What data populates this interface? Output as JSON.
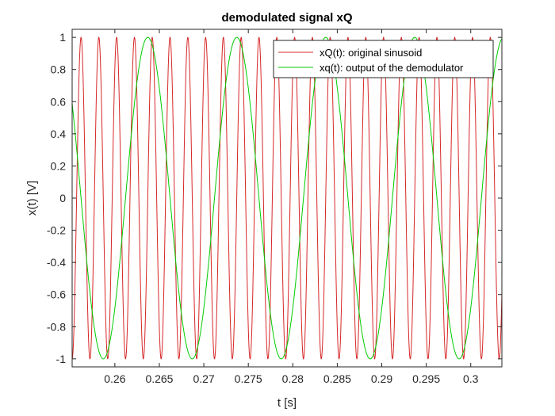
{
  "chart_data": {
    "type": "line",
    "title": "demodulated signal xQ",
    "xlabel": "t [s]",
    "ylabel": "x(t) [V]",
    "xlim": [
      0.2552,
      0.3035
    ],
    "ylim": [
      -1.05,
      1.05
    ],
    "xticks": [
      0.26,
      0.265,
      0.27,
      0.275,
      0.28,
      0.285,
      0.29,
      0.295,
      0.3
    ],
    "xtick_labels": [
      "0.26",
      "0.265",
      "0.27",
      "0.275",
      "0.28",
      "0.285",
      "0.29",
      "0.295",
      "0.3"
    ],
    "yticks": [
      -1,
      -0.8,
      -0.6,
      -0.4,
      -0.2,
      0,
      0.2,
      0.4,
      0.6,
      0.8,
      1
    ],
    "ytick_labels": [
      "-1",
      "-0.8",
      "-0.6",
      "-0.4",
      "-0.2",
      "0",
      "0.2",
      "0.4",
      "0.6",
      "0.8",
      "1"
    ],
    "grid": false,
    "legend_position": "top-right",
    "series": [
      {
        "name": "xQ(t): original sinusoid",
        "color": "#d62728",
        "function": "sin",
        "frequency_hz": 500,
        "amplitude": 1,
        "peak_times": [
          0.2562,
          0.2582,
          0.2602,
          0.2622,
          0.2642,
          0.2662,
          0.2682,
          0.2702,
          0.2722,
          0.2742,
          0.2762,
          0.2782,
          0.2802,
          0.2822,
          0.2842,
          0.2862,
          0.2882,
          0.2902,
          0.2922,
          0.2942,
          0.2962,
          0.2982,
          0.3002,
          0.3022
        ]
      },
      {
        "name": "xq(t): output of the demodulator",
        "color": "#00cc00",
        "function": "sin",
        "frequency_hz": 100,
        "amplitude": 1,
        "peak_times": [
          0.2637,
          0.2737,
          0.2837,
          0.2937
        ]
      }
    ]
  }
}
